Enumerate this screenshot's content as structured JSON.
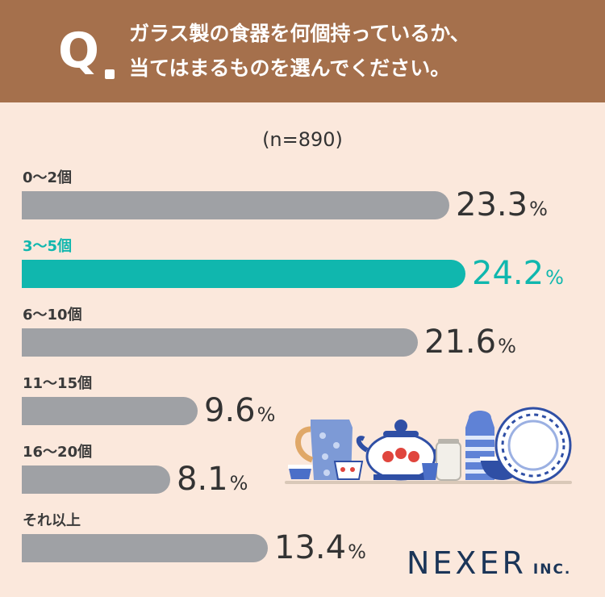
{
  "header": {
    "q_mark": "Q",
    "question_line1": "ガラス製の食器を何個持っているか、",
    "question_line2": "当てはまるものを選んでください。"
  },
  "sample_size": "(n=890)",
  "chart_data": {
    "type": "bar",
    "orientation": "horizontal",
    "categories": [
      "0〜2個",
      "3〜5個",
      "6〜10個",
      "11〜15個",
      "16〜20個",
      "それ以上"
    ],
    "values": [
      23.3,
      24.2,
      21.6,
      9.6,
      8.1,
      13.4
    ],
    "value_labels": [
      "23.3",
      "24.2",
      "21.6",
      "9.6",
      "8.1",
      "13.4"
    ],
    "unit": "%",
    "highlight_index": 1,
    "colors": {
      "bar": "#9fa1a5",
      "highlight": "#10b7ae"
    },
    "xlim": [
      0,
      24.2
    ]
  },
  "logo": {
    "main": "NEXER",
    "sub": "INC."
  }
}
